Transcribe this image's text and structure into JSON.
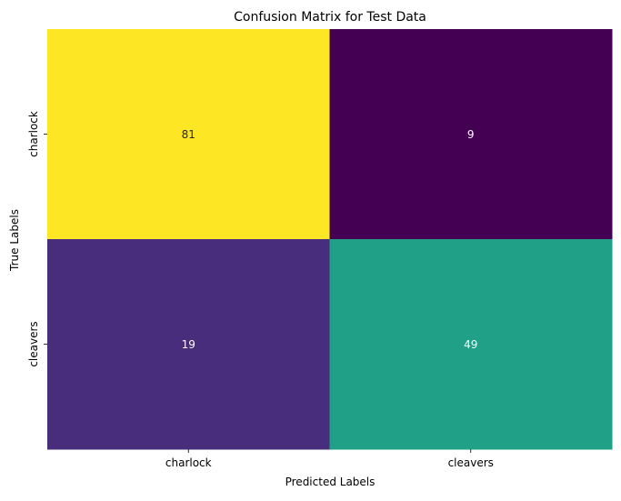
{
  "chart_data": {
    "type": "heatmap",
    "title": "Confusion Matrix for Test Data",
    "xlabel": "Predicted Labels",
    "ylabel": "True Labels",
    "x_categories": [
      "charlock",
      "cleavers"
    ],
    "y_categories": [
      "charlock",
      "cleavers"
    ],
    "values": [
      [
        81,
        9
      ],
      [
        19,
        49
      ]
    ],
    "colormap": "viridis",
    "cell_colors": [
      [
        "#fde725",
        "#440154"
      ],
      [
        "#472d7b",
        "#20a087"
      ]
    ],
    "annotation_colors": [
      [
        "#262626",
        "#ffffff"
      ],
      [
        "#ffffff",
        "#ffffff"
      ]
    ],
    "colorbar": false
  }
}
